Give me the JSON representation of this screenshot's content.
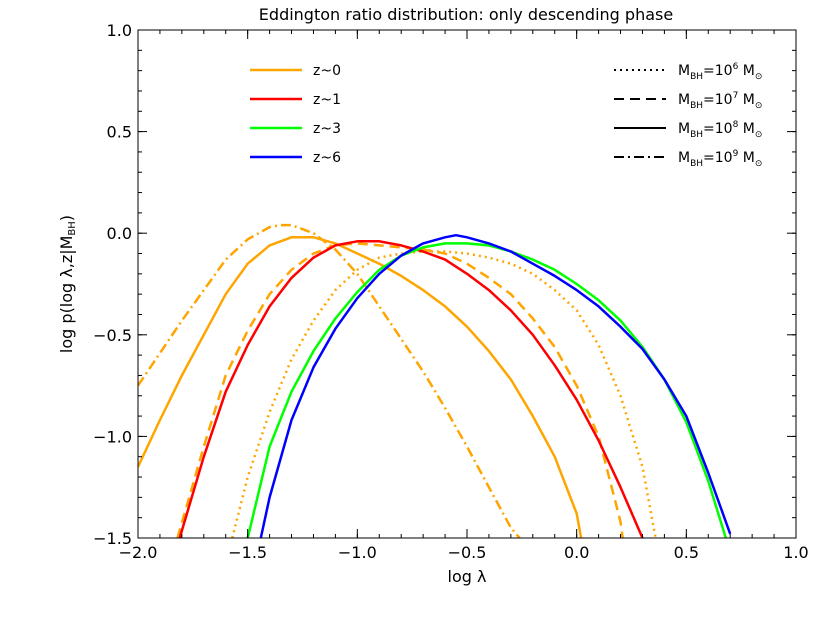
{
  "chart_data": {
    "type": "line",
    "title": "Eddington ratio distribution: only descending phase",
    "xlabel": "log λ",
    "ylabel_main": "log p(log λ,z|M",
    "ylabel_sub": "BH",
    "ylabel_close": ")",
    "xlim": [
      -2.0,
      1.0
    ],
    "ylim": [
      -1.5,
      1.0
    ],
    "xticks": [
      {
        "value": -2.0,
        "label": "−2.0"
      },
      {
        "value": -1.5,
        "label": "−1.5"
      },
      {
        "value": -1.0,
        "label": "−1.0"
      },
      {
        "value": -0.5,
        "label": "−0.5"
      },
      {
        "value": 0.0,
        "label": "0.0"
      },
      {
        "value": 0.5,
        "label": "0.5"
      },
      {
        "value": 1.0,
        "label": "1.0"
      }
    ],
    "yticks": [
      {
        "value": -1.5,
        "label": "−1.5"
      },
      {
        "value": -1.0,
        "label": "−1.0"
      },
      {
        "value": -0.5,
        "label": "−0.5"
      },
      {
        "value": 0.0,
        "label": "0.0"
      },
      {
        "value": 0.5,
        "label": "0.5"
      },
      {
        "value": 1.0,
        "label": "1.0"
      }
    ],
    "grid": false,
    "legend_redshift": [
      {
        "label": "z~0",
        "color": "#ffa500"
      },
      {
        "label": "z~1",
        "color": "#ff0000"
      },
      {
        "label": "z~3",
        "color": "#00ff00"
      },
      {
        "label": "z~6",
        "color": "#0000ff"
      }
    ],
    "legend_mass": [
      {
        "style": "dotted",
        "prefix": "M",
        "sub": "BH",
        "eq": "=10",
        "exp": "6",
        "unit": "M",
        "unit_sub": "⊙"
      },
      {
        "style": "dashed",
        "prefix": "M",
        "sub": "BH",
        "eq": "=10",
        "exp": "7",
        "unit": "M",
        "unit_sub": "⊙"
      },
      {
        "style": "solid",
        "prefix": "M",
        "sub": "BH",
        "eq": "=10",
        "exp": "8",
        "unit": "M",
        "unit_sub": "⊙"
      },
      {
        "style": "dashdot",
        "prefix": "M",
        "sub": "BH",
        "eq": "=10",
        "exp": "9",
        "unit": "M",
        "unit_sub": "⊙"
      }
    ],
    "series": [
      {
        "redshift": "z~0",
        "mass": "10^9",
        "color": "#ffa500",
        "style": "dashdot",
        "x": [
          -2.0,
          -1.8,
          -1.6,
          -1.5,
          -1.4,
          -1.35,
          -1.3,
          -1.2,
          -1.1,
          -1.0,
          -0.9,
          -0.8,
          -0.7,
          -0.6,
          -0.5,
          -0.4,
          -0.35,
          -0.3,
          -0.26
        ],
        "y": [
          -0.75,
          -0.43,
          -0.13,
          -0.03,
          0.03,
          0.04,
          0.04,
          0.0,
          -0.08,
          -0.2,
          -0.36,
          -0.52,
          -0.68,
          -0.86,
          -1.05,
          -1.25,
          -1.35,
          -1.45,
          -1.5
        ]
      },
      {
        "redshift": "z~0",
        "mass": "10^8",
        "color": "#ffa500",
        "style": "solid",
        "x": [
          -2.0,
          -1.9,
          -1.8,
          -1.7,
          -1.6,
          -1.5,
          -1.4,
          -1.3,
          -1.25,
          -1.2,
          -1.1,
          -1.0,
          -0.9,
          -0.8,
          -0.7,
          -0.6,
          -0.5,
          -0.4,
          -0.3,
          -0.2,
          -0.1,
          0.0,
          0.02
        ],
        "y": [
          -1.15,
          -0.92,
          -0.7,
          -0.5,
          -0.3,
          -0.15,
          -0.06,
          -0.02,
          -0.02,
          -0.02,
          -0.05,
          -0.1,
          -0.15,
          -0.21,
          -0.28,
          -0.36,
          -0.46,
          -0.58,
          -0.72,
          -0.9,
          -1.1,
          -1.38,
          -1.5
        ]
      },
      {
        "redshift": "z~0",
        "mass": "10^7",
        "color": "#ffa500",
        "style": "dashed",
        "x": [
          -1.82,
          -1.7,
          -1.6,
          -1.5,
          -1.4,
          -1.3,
          -1.2,
          -1.1,
          -1.0,
          -0.9,
          -0.8,
          -0.7,
          -0.6,
          -0.5,
          -0.4,
          -0.3,
          -0.2,
          -0.1,
          0.0,
          0.1,
          0.2,
          0.21
        ],
        "y": [
          -1.5,
          -1.05,
          -0.7,
          -0.48,
          -0.3,
          -0.18,
          -0.1,
          -0.06,
          -0.05,
          -0.06,
          -0.07,
          -0.08,
          -0.1,
          -0.15,
          -0.22,
          -0.3,
          -0.42,
          -0.56,
          -0.75,
          -1.0,
          -1.42,
          -1.5
        ]
      },
      {
        "redshift": "z~0",
        "mass": "10^6",
        "color": "#ffa500",
        "style": "dotted",
        "x": [
          -1.57,
          -1.5,
          -1.4,
          -1.3,
          -1.2,
          -1.1,
          -1.0,
          -0.9,
          -0.8,
          -0.7,
          -0.6,
          -0.5,
          -0.4,
          -0.3,
          -0.2,
          -0.1,
          0.0,
          0.1,
          0.2,
          0.3,
          0.36
        ],
        "y": [
          -1.5,
          -1.2,
          -0.88,
          -0.62,
          -0.43,
          -0.28,
          -0.18,
          -0.12,
          -0.1,
          -0.09,
          -0.09,
          -0.1,
          -0.12,
          -0.15,
          -0.2,
          -0.28,
          -0.38,
          -0.55,
          -0.8,
          -1.15,
          -1.5
        ]
      },
      {
        "redshift": "z~1",
        "mass": "10^8",
        "color": "#ff0000",
        "style": "solid",
        "x": [
          -1.81,
          -1.7,
          -1.6,
          -1.5,
          -1.4,
          -1.3,
          -1.2,
          -1.1,
          -1.0,
          -0.9,
          -0.8,
          -0.7,
          -0.6,
          -0.5,
          -0.4,
          -0.3,
          -0.2,
          -0.1,
          0.0,
          0.1,
          0.2,
          0.3
        ],
        "y": [
          -1.5,
          -1.1,
          -0.78,
          -0.55,
          -0.36,
          -0.22,
          -0.12,
          -0.06,
          -0.04,
          -0.04,
          -0.06,
          -0.09,
          -0.13,
          -0.2,
          -0.28,
          -0.38,
          -0.5,
          -0.65,
          -0.82,
          -1.02,
          -1.25,
          -1.5
        ]
      },
      {
        "redshift": "z~3",
        "mass": "10^8",
        "color": "#00ff00",
        "style": "solid",
        "x": [
          -1.5,
          -1.4,
          -1.3,
          -1.2,
          -1.1,
          -1.0,
          -0.9,
          -0.8,
          -0.7,
          -0.6,
          -0.5,
          -0.4,
          -0.3,
          -0.2,
          -0.1,
          0.0,
          0.1,
          0.2,
          0.3,
          0.4,
          0.5,
          0.6,
          0.68
        ],
        "y": [
          -1.5,
          -1.05,
          -0.78,
          -0.58,
          -0.42,
          -0.29,
          -0.18,
          -0.11,
          -0.07,
          -0.05,
          -0.05,
          -0.06,
          -0.09,
          -0.13,
          -0.18,
          -0.25,
          -0.33,
          -0.43,
          -0.56,
          -0.72,
          -0.93,
          -1.22,
          -1.5
        ]
      },
      {
        "redshift": "z~6",
        "mass": "10^8",
        "color": "#0000ff",
        "style": "solid",
        "x": [
          -1.44,
          -1.4,
          -1.3,
          -1.2,
          -1.1,
          -1.0,
          -0.9,
          -0.8,
          -0.7,
          -0.6,
          -0.55,
          -0.5,
          -0.4,
          -0.3,
          -0.2,
          -0.1,
          0.0,
          0.1,
          0.2,
          0.3,
          0.4,
          0.5,
          0.6,
          0.7
        ],
        "y": [
          -1.5,
          -1.3,
          -0.92,
          -0.66,
          -0.47,
          -0.32,
          -0.2,
          -0.11,
          -0.05,
          -0.02,
          -0.01,
          -0.02,
          -0.05,
          -0.09,
          -0.15,
          -0.21,
          -0.28,
          -0.36,
          -0.46,
          -0.57,
          -0.72,
          -0.9,
          -1.18,
          -1.48
        ]
      }
    ]
  }
}
